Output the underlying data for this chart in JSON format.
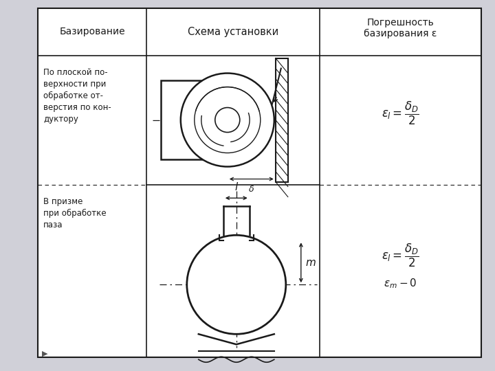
{
  "bg_color": "#d0d0d8",
  "table_bg": "#ffffff",
  "line_color": "#1a1a1a",
  "header1": "Базирование",
  "header2": "Схема установки",
  "header3": "Погрешность\nбазирования ε",
  "text1": "По плоской по-\nверхности при\nобработке от-\nверстия по кон-\nдуктору",
  "text2": "В призме\nпри обработке\nпаза",
  "formula1": "$\\varepsilon_l = \\dfrac{\\delta_D}{2}$",
  "formula2a": "$\\varepsilon_l = \\dfrac{\\delta_D}{2}$",
  "formula2b": "$\\varepsilon_m - 0$",
  "delta_label": "$\\delta$",
  "l_label": "$l$",
  "m_label": "$m$"
}
